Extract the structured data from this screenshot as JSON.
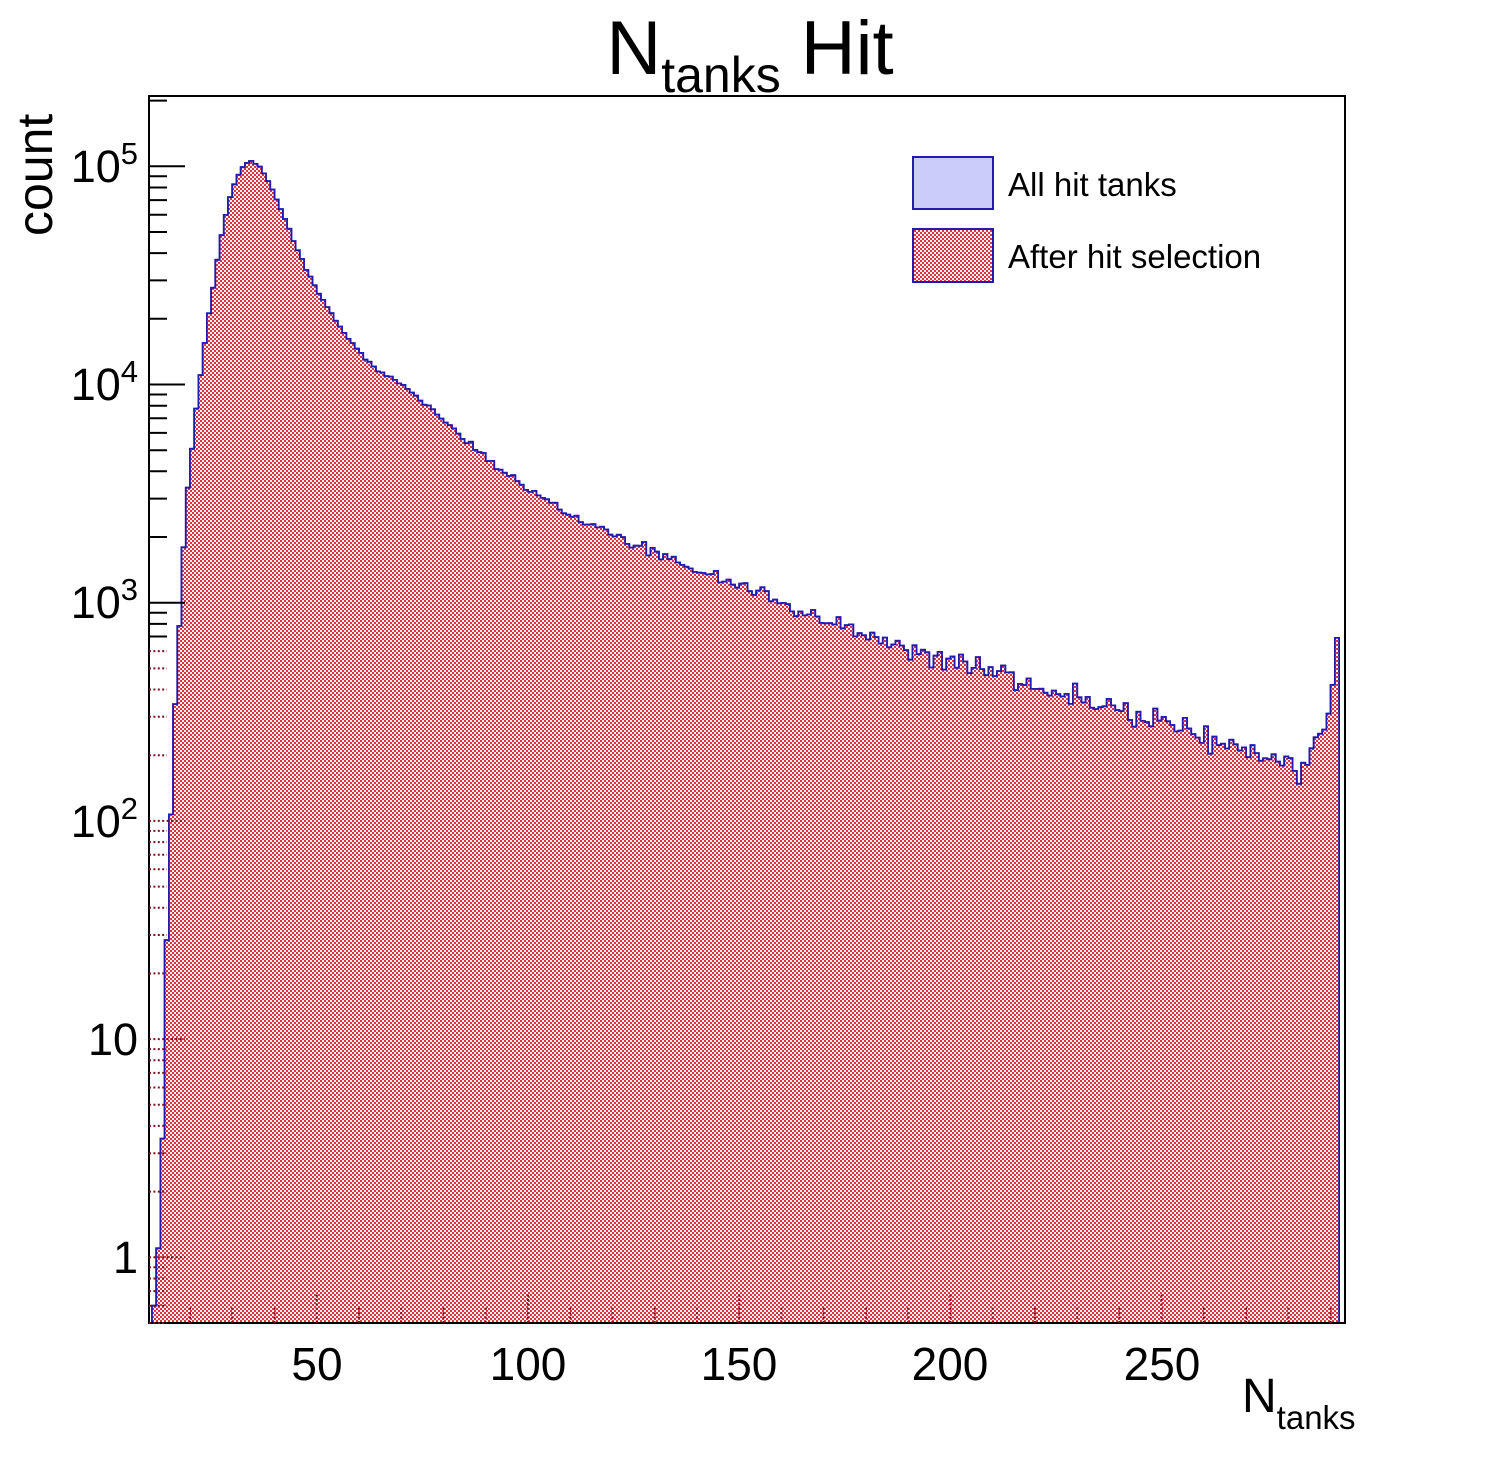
{
  "title": {
    "main": "N",
    "sub": "tanks",
    "tail": "Hit"
  },
  "axes": {
    "x": {
      "title": {
        "main": "N",
        "sub": "tanks"
      },
      "range": [
        10.3,
        293.4
      ],
      "major_ticks": [
        {
          "value": 50,
          "label": "50"
        },
        {
          "value": 100,
          "label": "100"
        },
        {
          "value": 150,
          "label": "150"
        },
        {
          "value": 200,
          "label": "200"
        },
        {
          "value": 250,
          "label": "250"
        }
      ],
      "minor_tick_step": 10
    },
    "y": {
      "title": "count",
      "scale": "log",
      "range": [
        0.5,
        210000
      ],
      "major_ticks": [
        {
          "value": 1,
          "base": "1",
          "exp": ""
        },
        {
          "value": 10,
          "base": "10",
          "exp": ""
        },
        {
          "value": 100,
          "base": "10",
          "exp": "2"
        },
        {
          "value": 1000,
          "base": "10",
          "exp": "3"
        },
        {
          "value": 10000,
          "base": "10",
          "exp": "4"
        },
        {
          "value": 100000,
          "base": "10",
          "exp": "5"
        }
      ]
    }
  },
  "legend": {
    "items": [
      {
        "label": "All hit tanks",
        "swatch": "solid"
      },
      {
        "label": "After hit selection",
        "swatch": "checker"
      }
    ]
  },
  "colors": {
    "hist_outline": "#221bae",
    "all_fill": "#ccccf8",
    "after_red": "#e0303e",
    "after_light": "#f8f2f6",
    "frame": "#000000",
    "tick_inside_fill": "#7a1020"
  },
  "chart_data": {
    "type": "bar",
    "subtype": "step-histogram",
    "title": "N_{tanks} Hit",
    "xlabel": "N_{tanks}",
    "ylabel": "count",
    "yscale": "log",
    "xlim": [
      10.3,
      293.4
    ],
    "ylim": [
      0.5,
      210000
    ],
    "bin_width": 1,
    "legend_position": "top-right",
    "grid": false,
    "series": [
      {
        "name": "All hit tanks",
        "anchors": [
          [
            11,
            0.6
          ],
          [
            12,
            1.1
          ],
          [
            13,
            3.5
          ],
          [
            14,
            20
          ],
          [
            15,
            95
          ],
          [
            16,
            300
          ],
          [
            17,
            800
          ],
          [
            18,
            1800
          ],
          [
            19,
            3200
          ],
          [
            20,
            5200
          ],
          [
            21,
            7800
          ],
          [
            22,
            11000
          ],
          [
            23,
            15500
          ],
          [
            24,
            21000
          ],
          [
            25,
            28000
          ],
          [
            26,
            37000
          ],
          [
            27,
            48000
          ],
          [
            28,
            60000
          ],
          [
            29,
            72000
          ],
          [
            30,
            83000
          ],
          [
            31,
            92000
          ],
          [
            32,
            99000
          ],
          [
            33,
            103500
          ],
          [
            34,
            105000
          ],
          [
            35,
            103000
          ],
          [
            36,
            99000
          ],
          [
            37,
            93000
          ],
          [
            38,
            86000
          ],
          [
            39,
            78000
          ],
          [
            40,
            70500
          ],
          [
            41,
            63500
          ],
          [
            42,
            57000
          ],
          [
            43,
            51500
          ],
          [
            44,
            46000
          ],
          [
            45,
            41500
          ],
          [
            46,
            37500
          ],
          [
            47,
            34000
          ],
          [
            48,
            31000
          ],
          [
            49,
            28500
          ],
          [
            50,
            26000
          ],
          [
            52,
            22400
          ],
          [
            54,
            19600
          ],
          [
            56,
            17300
          ],
          [
            58,
            15400
          ],
          [
            60,
            13900
          ],
          [
            63,
            12100
          ],
          [
            66,
            10900
          ],
          [
            70,
            10000
          ],
          [
            75,
            8300
          ],
          [
            80,
            6600
          ],
          [
            85,
            5450
          ],
          [
            90,
            4550
          ],
          [
            95,
            3850
          ],
          [
            100,
            3300
          ],
          [
            105,
            2870
          ],
          [
            110,
            2520
          ],
          [
            115,
            2250
          ],
          [
            120,
            2020
          ],
          [
            125,
            1840
          ],
          [
            130,
            1680
          ],
          [
            135,
            1540
          ],
          [
            140,
            1420
          ],
          [
            145,
            1300
          ],
          [
            150,
            1190
          ],
          [
            155,
            1080
          ],
          [
            160,
            985
          ],
          [
            165,
            900
          ],
          [
            170,
            830
          ],
          [
            175,
            765
          ],
          [
            180,
            708
          ],
          [
            185,
            657
          ],
          [
            190,
            612
          ],
          [
            195,
            572
          ],
          [
            200,
            536
          ],
          [
            205,
            503
          ],
          [
            210,
            470
          ],
          [
            215,
            440
          ],
          [
            220,
            412
          ],
          [
            225,
            387
          ],
          [
            230,
            364
          ],
          [
            235,
            343
          ],
          [
            240,
            323
          ],
          [
            245,
            302
          ],
          [
            250,
            286
          ],
          [
            255,
            269
          ],
          [
            260,
            253
          ],
          [
            264,
            242
          ],
          [
            266,
            232
          ],
          [
            268,
            222
          ],
          [
            270,
            210
          ],
          [
            272,
            197
          ],
          [
            274,
            187
          ],
          [
            275,
            182
          ],
          [
            276,
            190
          ],
          [
            277,
            185
          ],
          [
            278,
            180
          ],
          [
            279,
            175
          ],
          [
            280,
            172
          ],
          [
            281,
            168
          ],
          [
            282,
            173
          ],
          [
            283,
            178
          ],
          [
            284,
            186
          ],
          [
            285,
            196
          ],
          [
            286,
            210
          ],
          [
            287,
            230
          ],
          [
            288,
            262
          ],
          [
            289,
            310
          ],
          [
            290,
            420
          ],
          [
            291,
            690
          ]
        ]
      },
      {
        "name": "After hit selection",
        "anchors_ref": 0,
        "note": "identical to 'All hit tanks' within line width in this plot"
      }
    ],
    "noise_seed": 12,
    "noise_scale": 1.2
  }
}
